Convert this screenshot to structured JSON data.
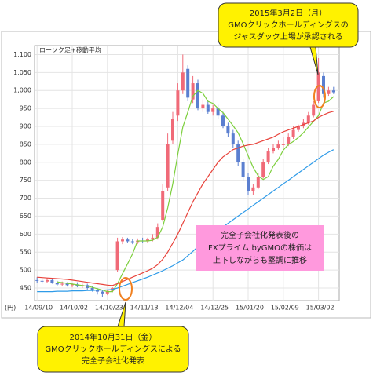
{
  "chart_data": {
    "type": "candlestick",
    "legend_label": "ローソク足+移動平均",
    "y_unit": "(円)",
    "categories": [
      "14/09/10",
      null,
      null,
      null,
      null,
      null,
      null,
      "14/10/02",
      null,
      null,
      null,
      null,
      null,
      null,
      "14/10/23",
      null,
      null,
      null,
      null,
      null,
      null,
      "14/11/13",
      null,
      null,
      null,
      null,
      null,
      null,
      "14/12/04",
      null,
      null,
      null,
      null,
      null,
      null,
      "14/12/25",
      null,
      null,
      null,
      null,
      null,
      null,
      "15/01/20",
      null,
      null,
      null,
      null,
      null,
      null,
      "15/02/09",
      null,
      null,
      null,
      null,
      null,
      null,
      "15/03/02",
      null,
      null,
      null
    ],
    "open": [
      472,
      470,
      468,
      472,
      465,
      460,
      462,
      458,
      460,
      455,
      458,
      450,
      445,
      440,
      435,
      442,
      500,
      580,
      585,
      580,
      578,
      582,
      580,
      585,
      590,
      640,
      730,
      860,
      930,
      1000,
      1060,
      975,
      1020,
      950,
      960,
      940,
      950,
      930,
      900,
      880,
      850,
      800,
      760,
      720,
      730,
      760,
      800,
      830,
      840,
      850,
      850,
      870,
      890,
      900,
      910,
      930,
      970,
      1040,
      990,
      1000
    ],
    "high": [
      480,
      476,
      478,
      476,
      470,
      468,
      466,
      464,
      466,
      462,
      462,
      455,
      450,
      445,
      445,
      452,
      590,
      592,
      590,
      586,
      588,
      590,
      590,
      600,
      630,
      740,
      880,
      940,
      1020,
      1100,
      1070,
      1040,
      1030,
      975,
      970,
      960,
      960,
      940,
      910,
      890,
      860,
      810,
      770,
      740,
      770,
      810,
      840,
      850,
      860,
      870,
      880,
      900,
      905,
      920,
      940,
      970,
      1090,
      1050,
      1010,
      1010
    ],
    "low": [
      465,
      462,
      464,
      462,
      455,
      455,
      454,
      452,
      452,
      450,
      445,
      440,
      432,
      425,
      430,
      438,
      495,
      572,
      575,
      572,
      572,
      575,
      575,
      580,
      585,
      635,
      720,
      850,
      915,
      990,
      970,
      965,
      945,
      940,
      935,
      930,
      920,
      895,
      870,
      840,
      790,
      750,
      710,
      710,
      725,
      755,
      795,
      825,
      835,
      840,
      845,
      865,
      885,
      895,
      905,
      925,
      965,
      980,
      985,
      990
    ],
    "close": [
      470,
      468,
      472,
      465,
      460,
      462,
      458,
      460,
      455,
      458,
      450,
      445,
      440,
      435,
      442,
      450,
      580,
      585,
      580,
      578,
      582,
      580,
      585,
      590,
      620,
      720,
      850,
      920,
      1000,
      1050,
      980,
      1020,
      950,
      960,
      940,
      950,
      930,
      900,
      880,
      850,
      800,
      760,
      720,
      730,
      760,
      800,
      830,
      840,
      850,
      850,
      870,
      890,
      900,
      910,
      930,
      960,
      1050,
      990,
      1000,
      995
    ],
    "up_color": "#f06a78",
    "down_color": "#5b7fd0",
    "series": [
      {
        "color": "#7ccf3c",
        "values": [
          null,
          null,
          null,
          null,
          467,
          465,
          463,
          461,
          459,
          457,
          455,
          452,
          448,
          444,
          440,
          440,
          462,
          490,
          517,
          545,
          581,
          581,
          581,
          583,
          591,
          620,
          673,
          740,
          822,
          898,
          940,
          984,
          1000,
          992,
          970,
          964,
          950,
          938,
          920,
          902,
          882,
          852,
          818,
          786,
          762,
          752,
          760,
          789,
          808,
          834,
          849,
          858,
          869,
          882,
          898,
          914,
          930,
          965,
          970,
          983
        ]
      },
      {
        "color": "#e8423a",
        "values": [
          480,
          479,
          478,
          477,
          476,
          475,
          474,
          472,
          470,
          468,
          466,
          464,
          462,
          460,
          458,
          457,
          462,
          468,
          474,
          480,
          486,
          492,
          498,
          505,
          515,
          530,
          550,
          575,
          600,
          630,
          660,
          690,
          715,
          740,
          760,
          780,
          800,
          815,
          825,
          835,
          840,
          845,
          848,
          850,
          855,
          860,
          865,
          870,
          878,
          885,
          890,
          895,
          900,
          905,
          910,
          915,
          925,
          932,
          938,
          942
        ]
      },
      {
        "color": "#2f9be8",
        "values": [
          440,
          440,
          440,
          440,
          441,
          441,
          441,
          442,
          442,
          442,
          443,
          443,
          444,
          444,
          445,
          446,
          450,
          455,
          460,
          465,
          470,
          475,
          480,
          486,
          492,
          498,
          505,
          512,
          520,
          528,
          540,
          552,
          565,
          578,
          590,
          600,
          610,
          620,
          630,
          640,
          650,
          660,
          670,
          680,
          690,
          700,
          710,
          720,
          730,
          740,
          750,
          760,
          770,
          780,
          790,
          800,
          810,
          820,
          828,
          835
        ]
      }
    ],
    "ylim": [
      415,
      1125
    ],
    "yticks": [
      450,
      500,
      550,
      600,
      650,
      700,
      750,
      800,
      850,
      900,
      950,
      {
        "value": 1000,
        "label": "1,000"
      },
      {
        "value": 1050,
        "label": "1,050"
      },
      {
        "value": 1100,
        "label": "1,100"
      }
    ],
    "grid": true,
    "annotations": [
      {
        "lines": [
          "2015年3月2日（月）",
          "GMOクリックホールディングスの",
          "ジャスダック上場が承認される"
        ]
      },
      {
        "lines": [
          "完全子会社化発表後の",
          "FXプライム byGMOの株価は",
          "上下しながらも堅調に推移"
        ]
      },
      {
        "lines": [
          "2014年10月31日（金）",
          "GMOクリックホールディングスによる",
          "完全子会社化発表"
        ]
      }
    ]
  }
}
